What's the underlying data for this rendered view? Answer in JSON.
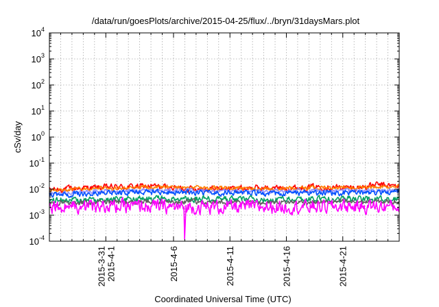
{
  "chart_data": {
    "type": "line",
    "title": "/data/run/goesPlots/archive/2015-04-25/flux/../bryn/31daysMars.plot",
    "xlabel": "Coordinated Universal Time (UTC)",
    "ylabel": "cSv/day",
    "yscale": "log",
    "ylim": [
      0.0001,
      10000
    ],
    "xlim": [
      "2015-03-26",
      "2015-04-26"
    ],
    "grid": true,
    "y_ticks": [
      {
        "base": "10",
        "exp": "-4"
      },
      {
        "base": "10",
        "exp": "-3"
      },
      {
        "base": "10",
        "exp": "-2"
      },
      {
        "base": "10",
        "exp": "-1"
      },
      {
        "base": "10",
        "exp": "0"
      },
      {
        "base": "10",
        "exp": "1"
      },
      {
        "base": "10",
        "exp": "2"
      },
      {
        "base": "10",
        "exp": "3"
      },
      {
        "base": "10",
        "exp": "4"
      }
    ],
    "x_ticks": [
      {
        "date": "2015-03-31",
        "lines": [
          "2015-3-31",
          "2015-4-1"
        ]
      },
      {
        "date": "2015-04-06",
        "lines": [
          "2015-4-6"
        ]
      },
      {
        "date": "2015-04-11",
        "lines": [
          "2015-4-11"
        ]
      },
      {
        "date": "2015-04-16",
        "lines": [
          "2015-4-16"
        ]
      },
      {
        "date": "2015-04-21",
        "lines": [
          "2015-4-21"
        ]
      }
    ],
    "minor_x_dates": [
      "2015-03-27",
      "2015-03-28",
      "2015-03-29",
      "2015-03-30",
      "2015-04-01",
      "2015-04-02",
      "2015-04-03",
      "2015-04-04",
      "2015-04-05",
      "2015-04-07",
      "2015-04-08",
      "2015-04-09",
      "2015-04-10",
      "2015-04-12",
      "2015-04-13",
      "2015-04-14",
      "2015-04-15",
      "2015-04-17",
      "2015-04-18",
      "2015-04-19",
      "2015-04-20",
      "2015-04-22",
      "2015-04-23",
      "2015-04-24",
      "2015-04-25"
    ],
    "series": [
      {
        "color": "#ff0000",
        "dates": [
          "2015-03-26",
          "2015-03-29",
          "2015-04-01",
          "2015-04-04",
          "2015-04-07",
          "2015-04-10",
          "2015-04-13",
          "2015-04-16",
          "2015-04-19",
          "2015-04-22",
          "2015-04-24",
          "2015-04-26"
        ],
        "values": [
          0.0095,
          0.011,
          0.012,
          0.013,
          0.0105,
          0.0105,
          0.011,
          0.011,
          0.0125,
          0.011,
          0.0145,
          0.013
        ],
        "jitter": 0.1
      },
      {
        "color": "#ff7f00",
        "dates": [
          "2015-03-26",
          "2015-04-04",
          "2015-04-14",
          "2015-04-26"
        ],
        "values": [
          0.009,
          0.012,
          0.0105,
          0.0125
        ],
        "jitter": 0.06
      },
      {
        "color": "#9090ff",
        "dates": [
          "2015-03-26",
          "2015-04-04",
          "2015-04-14",
          "2015-04-26"
        ],
        "values": [
          0.0072,
          0.009,
          0.0082,
          0.0092
        ],
        "jitter": 0.06
      },
      {
        "color": "#0050ff",
        "dates": [
          "2015-03-26",
          "2015-04-04",
          "2015-04-14",
          "2015-04-26"
        ],
        "values": [
          0.0062,
          0.0078,
          0.0068,
          0.0076
        ],
        "jitter": 0.09
      },
      {
        "color": "#00a060",
        "dates": [
          "2015-03-26",
          "2015-04-04",
          "2015-04-14",
          "2015-04-26"
        ],
        "values": [
          0.0036,
          0.0042,
          0.004,
          0.0042
        ],
        "jitter": 0.1
      },
      {
        "color": "#606060",
        "dates": [
          "2015-03-26",
          "2015-04-04",
          "2015-04-14",
          "2015-04-26"
        ],
        "values": [
          0.0029,
          0.0033,
          0.0031,
          0.0033
        ],
        "jitter": 0.08
      },
      {
        "color": "#ff00ff",
        "dates": [
          "2015-03-26",
          "2015-04-04",
          "2015-04-07",
          "2015-04-14",
          "2015-04-26"
        ],
        "values": [
          0.0021,
          0.0022,
          0.002,
          0.0021,
          0.0022
        ],
        "jitter": 0.22,
        "spike": {
          "date": "2015-04-07",
          "value": 0.00012
        }
      }
    ]
  }
}
